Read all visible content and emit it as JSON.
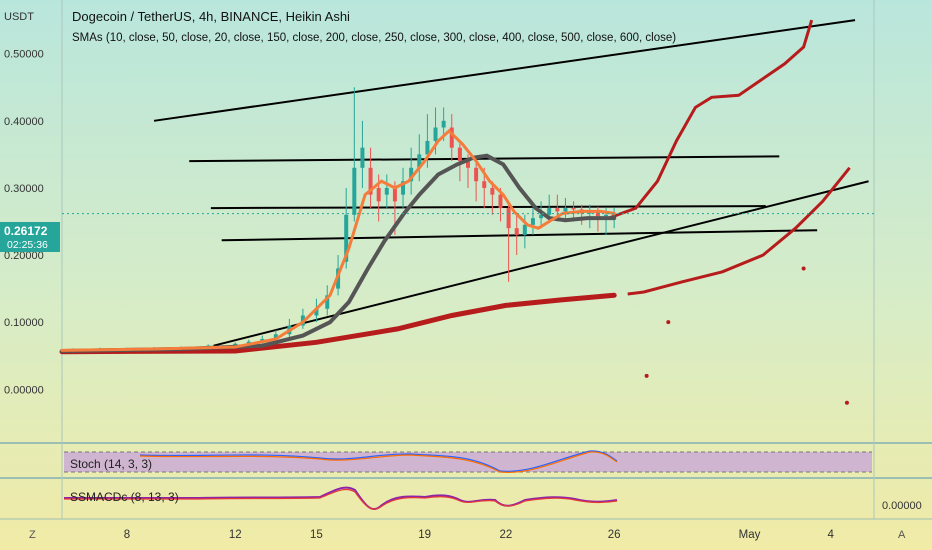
{
  "header": {
    "currency": "USDT",
    "title": "Dogecoin / TetherUS, 4h, BINANCE, Heikin Ashi",
    "study": "SMAs (10, close, 50, close, 20, close, 150, close, 200, close, 250, close, 300, close, 400, close, 500, close, 600, close)"
  },
  "price_tag": {
    "price": "0.26172",
    "countdown": "02:25:36"
  },
  "panes": {
    "stoch_label": "Stoch (14, 3, 3)",
    "macd_label": "SSMACDc (8, 13, 3)",
    "macd_value": "0.00000"
  },
  "scale_buttons": {
    "left": "Z",
    "right": "A"
  },
  "colors": {
    "candle_up": "#26a69a",
    "candle_down": "#ef5350",
    "sma_fast": "#f57c3a",
    "sma_mid": "#555555",
    "sma_slow": "#b71c1c",
    "trendline": "#000000"
  },
  "chart_data": {
    "type": "candlestick",
    "y_ticks": [
      "0.50000",
      "0.40000",
      "0.30000",
      "0.20000",
      "0.10000",
      "0.00000"
    ],
    "y_tick_values": [
      0.5,
      0.4,
      0.3,
      0.2,
      0.1,
      0.0
    ],
    "x_ticks": [
      "8",
      "12",
      "15",
      "19",
      "22",
      "26",
      "May",
      "4"
    ],
    "x_tick_days": [
      8,
      12,
      15,
      19,
      22,
      26,
      31,
      34
    ],
    "ylim": [
      -0.08,
      0.58
    ],
    "xlim": [
      5.6,
      35.6
    ],
    "current_price": 0.26172,
    "sma_fast": [
      [
        5.6,
        0.058
      ],
      [
        9,
        0.06
      ],
      [
        12,
        0.063
      ],
      [
        13.5,
        0.075
      ],
      [
        14.5,
        0.1
      ],
      [
        15.5,
        0.14
      ],
      [
        16.2,
        0.21
      ],
      [
        16.8,
        0.29
      ],
      [
        17.4,
        0.31
      ],
      [
        17.9,
        0.3
      ],
      [
        18.4,
        0.31
      ],
      [
        19.0,
        0.34
      ],
      [
        19.5,
        0.37
      ],
      [
        19.9,
        0.385
      ],
      [
        20.4,
        0.365
      ],
      [
        20.9,
        0.34
      ],
      [
        21.4,
        0.31
      ],
      [
        21.9,
        0.29
      ],
      [
        22.3,
        0.265
      ],
      [
        22.8,
        0.245
      ],
      [
        23.2,
        0.24
      ],
      [
        23.6,
        0.25
      ],
      [
        24.1,
        0.262
      ],
      [
        24.8,
        0.265
      ],
      [
        25.5,
        0.265
      ],
      [
        26.0,
        0.262
      ]
    ],
    "sma_mid": [
      [
        5.6,
        0.057
      ],
      [
        10,
        0.06
      ],
      [
        13,
        0.065
      ],
      [
        14.5,
        0.08
      ],
      [
        15.5,
        0.1
      ],
      [
        16.2,
        0.13
      ],
      [
        16.9,
        0.18
      ],
      [
        17.5,
        0.22
      ],
      [
        18.2,
        0.26
      ],
      [
        18.8,
        0.29
      ],
      [
        19.5,
        0.32
      ],
      [
        20.2,
        0.335
      ],
      [
        20.8,
        0.345
      ],
      [
        21.3,
        0.348
      ],
      [
        21.9,
        0.335
      ],
      [
        22.5,
        0.3
      ],
      [
        23.1,
        0.27
      ],
      [
        23.6,
        0.255
      ],
      [
        24.2,
        0.252
      ],
      [
        25.0,
        0.255
      ],
      [
        26.0,
        0.255
      ]
    ],
    "sma_slow": [
      [
        5.6,
        0.056
      ],
      [
        12,
        0.057
      ],
      [
        15,
        0.07
      ],
      [
        18,
        0.09
      ],
      [
        20,
        0.11
      ],
      [
        22,
        0.125
      ],
      [
        24,
        0.133
      ],
      [
        26,
        0.14
      ],
      [
        26.5,
        0.142
      ],
      [
        27.1,
        0.145
      ],
      [
        28.5,
        0.16
      ],
      [
        30,
        0.175
      ],
      [
        31.5,
        0.2
      ],
      [
        32.7,
        0.24
      ],
      [
        33.7,
        0.28
      ],
      [
        34.7,
        0.33
      ]
    ],
    "projection": [
      [
        25.8,
        0.255
      ],
      [
        26.8,
        0.27
      ],
      [
        27.6,
        0.31
      ],
      [
        28.3,
        0.37
      ],
      [
        29.0,
        0.42
      ],
      [
        29.6,
        0.435
      ],
      [
        30.6,
        0.438
      ],
      [
        31.4,
        0.46
      ],
      [
        32.3,
        0.485
      ],
      [
        33.0,
        0.51
      ],
      [
        33.3,
        0.55
      ]
    ],
    "scatter_points": [
      [
        27.2,
        0.02
      ],
      [
        28.0,
        0.1
      ],
      [
        33.0,
        0.18
      ],
      [
        34.6,
        -0.02
      ]
    ],
    "trendlines": [
      [
        [
          9.0,
          0.4
        ],
        [
          34.9,
          0.55
        ]
      ],
      [
        [
          10.3,
          0.34
        ],
        [
          32.1,
          0.347
        ]
      ],
      [
        [
          11.1,
          0.27
        ],
        [
          31.6,
          0.273
        ]
      ],
      [
        [
          11.5,
          0.222
        ],
        [
          33.5,
          0.237
        ]
      ],
      [
        [
          11.2,
          0.065
        ],
        [
          35.4,
          0.31
        ]
      ]
    ],
    "candles": [
      [
        6,
        0.057,
        0.058,
        0.054,
        0.061
      ],
      [
        7,
        0.058,
        0.059,
        0.056,
        0.062
      ],
      [
        8,
        0.059,
        0.06,
        0.057,
        0.062
      ],
      [
        9,
        0.06,
        0.061,
        0.058,
        0.063
      ],
      [
        10,
        0.061,
        0.062,
        0.059,
        0.064
      ],
      [
        11,
        0.062,
        0.065,
        0.06,
        0.067
      ],
      [
        12,
        0.064,
        0.068,
        0.062,
        0.07
      ],
      [
        12.5,
        0.067,
        0.071,
        0.065,
        0.074
      ],
      [
        13,
        0.071,
        0.075,
        0.068,
        0.08
      ],
      [
        13.5,
        0.075,
        0.082,
        0.072,
        0.088
      ],
      [
        14,
        0.082,
        0.095,
        0.078,
        0.105
      ],
      [
        14.5,
        0.095,
        0.11,
        0.09,
        0.12
      ],
      [
        15,
        0.11,
        0.12,
        0.1,
        0.135
      ],
      [
        15.4,
        0.12,
        0.14,
        0.11,
        0.155
      ],
      [
        15.8,
        0.15,
        0.18,
        0.14,
        0.2
      ],
      [
        16.1,
        0.19,
        0.26,
        0.18,
        0.3
      ],
      [
        16.4,
        0.26,
        0.33,
        0.25,
        0.45
      ],
      [
        16.7,
        0.33,
        0.36,
        0.3,
        0.4
      ],
      [
        17.0,
        0.33,
        0.29,
        0.27,
        0.36
      ],
      [
        17.3,
        0.3,
        0.28,
        0.25,
        0.32
      ],
      [
        17.6,
        0.29,
        0.3,
        0.27,
        0.32
      ],
      [
        17.9,
        0.3,
        0.28,
        0.23,
        0.31
      ],
      [
        18.2,
        0.29,
        0.31,
        0.27,
        0.33
      ],
      [
        18.5,
        0.31,
        0.33,
        0.29,
        0.36
      ],
      [
        18.8,
        0.33,
        0.35,
        0.31,
        0.38
      ],
      [
        19.1,
        0.35,
        0.37,
        0.33,
        0.41
      ],
      [
        19.4,
        0.37,
        0.39,
        0.35,
        0.42
      ],
      [
        19.7,
        0.39,
        0.4,
        0.37,
        0.42
      ],
      [
        20.0,
        0.39,
        0.36,
        0.34,
        0.41
      ],
      [
        20.3,
        0.36,
        0.34,
        0.31,
        0.37
      ],
      [
        20.6,
        0.34,
        0.33,
        0.3,
        0.35
      ],
      [
        20.9,
        0.33,
        0.31,
        0.28,
        0.34
      ],
      [
        21.2,
        0.31,
        0.3,
        0.27,
        0.33
      ],
      [
        21.5,
        0.3,
        0.29,
        0.26,
        0.31
      ],
      [
        21.8,
        0.29,
        0.27,
        0.25,
        0.3
      ],
      [
        22.1,
        0.27,
        0.24,
        0.16,
        0.28
      ],
      [
        22.4,
        0.24,
        0.23,
        0.2,
        0.26
      ],
      [
        22.7,
        0.23,
        0.245,
        0.21,
        0.26
      ],
      [
        23.0,
        0.245,
        0.255,
        0.23,
        0.27
      ],
      [
        23.3,
        0.255,
        0.26,
        0.24,
        0.28
      ],
      [
        23.6,
        0.26,
        0.27,
        0.25,
        0.29
      ],
      [
        23.9,
        0.27,
        0.265,
        0.25,
        0.29
      ],
      [
        24.2,
        0.265,
        0.27,
        0.25,
        0.285
      ],
      [
        24.5,
        0.27,
        0.268,
        0.25,
        0.28
      ],
      [
        24.8,
        0.268,
        0.262,
        0.245,
        0.275
      ],
      [
        25.1,
        0.262,
        0.265,
        0.24,
        0.275
      ],
      [
        25.4,
        0.265,
        0.258,
        0.235,
        0.272
      ],
      [
        25.7,
        0.258,
        0.26,
        0.23,
        0.27
      ],
      [
        26.0,
        0.26,
        0.262,
        0.24,
        0.27
      ]
    ]
  }
}
